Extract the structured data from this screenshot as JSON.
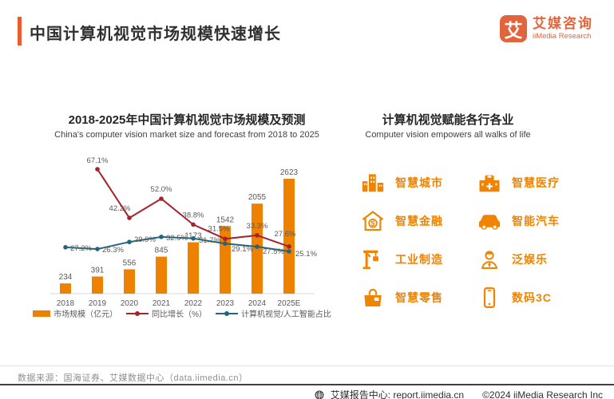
{
  "header": {
    "title": "中国计算机视觉市场规模快速增长",
    "logo": {
      "mark": "艾",
      "brand_cn": "艾媒咨询",
      "brand_en": "iiMedia Research"
    }
  },
  "chart_data": {
    "type": "bar+line combo",
    "title": "2018-2025年中国计算机视觉市场规模及预测",
    "subtitle": "China's computer vision market size and forecast from 2018 to 2025",
    "categories": [
      "2018",
      "2019",
      "2020",
      "2021",
      "2022",
      "2023",
      "2024",
      "2025E"
    ],
    "series": [
      {
        "name": "市场规模（亿元）",
        "type": "bar",
        "color": "#EE8100",
        "values": [
          234,
          391,
          556,
          845,
          1173,
          1542,
          2055,
          2623
        ],
        "labels": [
          "234",
          "391",
          "556",
          "845",
          "1173",
          "1542",
          "2055",
          "2623"
        ]
      },
      {
        "name": "同比增长（%）",
        "type": "line",
        "color": "#A5232D",
        "values": [
          null,
          67.1,
          42.2,
          52.0,
          38.8,
          31.5,
          33.3,
          27.6
        ],
        "labels": [
          "",
          "67.1%",
          "42.2%",
          "52.0%",
          "38.8%",
          "31.5%",
          "33.3%",
          "27.6%"
        ]
      },
      {
        "name": "计算机视觉/人工智能占比",
        "type": "line",
        "color": "#26647E",
        "values": [
          27.2,
          26.3,
          29.9,
          32.5,
          31.7,
          29.1,
          27.5,
          25.1
        ],
        "labels": [
          "27.2%",
          "26.3%",
          "29.9%",
          "32.5%",
          "31.7%",
          "29.1%",
          "27.5%",
          "25.1%"
        ]
      }
    ],
    "legend_position": "bottom",
    "grid": false,
    "y_axis_ticks_visible": false,
    "label_color": "#595959"
  },
  "right_panel": {
    "title_cn": "计算机视觉赋能各行各业",
    "title_en": "Computer vision empowers all walks of life",
    "items": [
      {
        "icon": "smart-city-icon",
        "label": "智慧城市"
      },
      {
        "icon": "smart-medical-icon",
        "label": "智慧医疗"
      },
      {
        "icon": "smart-finance-icon",
        "label": "智慧金融"
      },
      {
        "icon": "smart-car-icon",
        "label": "智能汽车"
      },
      {
        "icon": "industrial-manufacturing-icon",
        "label": "工业制造"
      },
      {
        "icon": "pan-entertainment-icon",
        "label": "泛娱乐"
      },
      {
        "icon": "smart-retail-icon",
        "label": "智慧零售"
      },
      {
        "icon": "digital-3c-icon",
        "label": "数码3C"
      }
    ]
  },
  "footer": {
    "source": "数据来源：国海证券、艾媒数据中心（data.iimedia.cn）",
    "report_center": "艾媒报告中心:  report.iimedia.cn",
    "copyright": "©2024  iiMedia Research  Inc"
  },
  "colors": {
    "accent_orange": "#EA5B2D",
    "brand_orange": "#E2643C",
    "icon_orange": "#F08300",
    "bar_orange": "#EE8100",
    "line_red": "#A5232D",
    "line_blue": "#26647E"
  }
}
